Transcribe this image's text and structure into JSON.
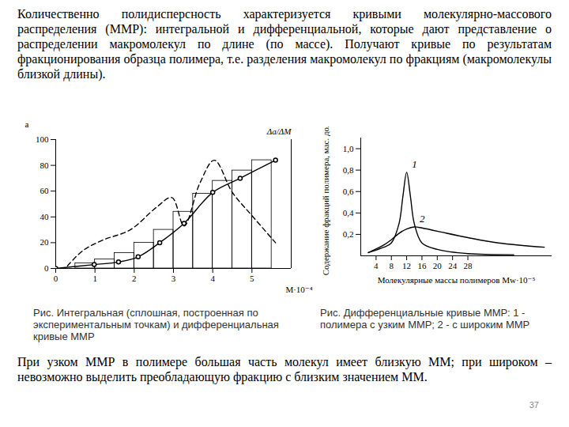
{
  "paragraphs": [
    "Количественно полидисперсность характеризуется кривыми молекулярно-массового распределения (ММР): интегральной и дифференциальной, которые дают представление о распределении макромолекул по длине (по массе). Получают кривые по результатам фракционирования образца полимера, т.е. разделения макромолекул по фракциям (макромолекулы близкой длины).",
    "При узком ММР в полимере большая часть молекул имеет близкую ММ; при широком – невозможно выделить преобладающую фракцию с близким значением ММ."
  ],
  "chart_data": [
    {
      "type": "line",
      "x_label": "M·10⁻⁴",
      "y_label": "a",
      "y2_label": "Δa/ΔM",
      "xlim": [
        0,
        6
      ],
      "xticks": [
        0,
        1,
        2,
        3,
        4,
        5
      ],
      "ylim": [
        0,
        100
      ],
      "yticks": [
        0,
        20,
        40,
        60,
        80,
        100
      ],
      "series": [
        {
          "type": "histogram",
          "bins": [
            0.5,
            1,
            1.5,
            2,
            2.5,
            3,
            3.5,
            4,
            4.5,
            5,
            5.5
          ],
          "values": [
            4,
            7,
            12,
            20,
            30,
            44,
            58,
            68,
            76,
            84
          ],
          "color": "#000000"
        },
        {
          "type": "line",
          "line_style": "solid",
          "marker": "circle",
          "color": "#000000",
          "x": [
            0,
            0.98,
            1.6,
            2.1,
            2.65,
            3.27,
            4.0,
            4.7,
            5.6
          ],
          "values": [
            0,
            3,
            5,
            9,
            20,
            35,
            59,
            70,
            84
          ]
        },
        {
          "type": "line",
          "line_style": "dashed",
          "color": "#000000",
          "x": [
            0.3,
            0.7,
            1.2,
            1.9,
            2.55,
            2.96,
            3.27,
            3.67,
            4.04,
            4.5,
            5.0,
            5.6
          ],
          "values": [
            2,
            14,
            22,
            30,
            47,
            55,
            33,
            66,
            84,
            59,
            41,
            20
          ]
        }
      ]
    },
    {
      "type": "line",
      "x_label": "Молекулярные массы полимеров Mw·10⁻⁵",
      "y_label": "Содержание фракций полимера, мас. доли",
      "xlim": [
        0,
        50
      ],
      "xticks": [
        4,
        8,
        12,
        16,
        20,
        24,
        28
      ],
      "ylim": [
        0,
        1.1
      ],
      "yticks": [
        {
          "value": 0.2,
          "label": "0,2"
        },
        {
          "value": 0.4,
          "label": "0,4"
        },
        {
          "value": 0.6,
          "label": "0,6"
        },
        {
          "value": 0.8,
          "label": "0,8"
        },
        {
          "value": 1.0,
          "label": "1,0"
        }
      ],
      "series": [
        {
          "name": "1",
          "color": "#000000",
          "x": [
            2,
            6,
            8,
            10,
            11,
            12,
            13,
            14,
            16,
            20,
            28,
            40
          ],
          "values": [
            0.03,
            0.08,
            0.12,
            0.3,
            0.55,
            0.78,
            0.55,
            0.3,
            0.12,
            0.06,
            0.02,
            0.01
          ]
        },
        {
          "name": "2",
          "color": "#000000",
          "x": [
            2,
            6,
            8,
            10,
            12,
            14,
            16,
            20,
            28,
            36,
            48
          ],
          "values": [
            0.03,
            0.1,
            0.15,
            0.21,
            0.25,
            0.27,
            0.26,
            0.23,
            0.17,
            0.12,
            0.08
          ]
        }
      ]
    }
  ],
  "captions": [
    "Рис. Интегральная (сплошная, построенная по экспериментальным точкам) и дифференциальная кривые ММР",
    "Рис. Дифференциальные кривые ММР: 1 - полимера с узким ММР; 2 - с широким ММР"
  ],
  "page_number": 37
}
